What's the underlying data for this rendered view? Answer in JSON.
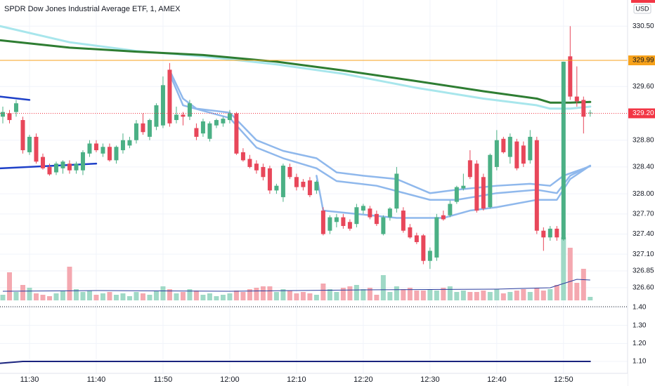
{
  "chart_data": {
    "type": "candlestick",
    "title": "SPDR Dow Jones Industrial Average ETF, 1, AMEX",
    "currency": "USD",
    "up_color": "#4bb085",
    "down_color": "#e8475a",
    "volume_up_color": "#9fd9c6",
    "volume_down_color": "#f4a8b0",
    "x": [
      686,
      687,
      688,
      689,
      690,
      691,
      692,
      693,
      694,
      695,
      696,
      697,
      698,
      699,
      700,
      701,
      702,
      703,
      704,
      705,
      706,
      707,
      708,
      709,
      710,
      711,
      712,
      713,
      714,
      715,
      716,
      717,
      718,
      719,
      720,
      721,
      722,
      723,
      724,
      725,
      726,
      727,
      728,
      729,
      730,
      731,
      732,
      733,
      734,
      735,
      736,
      737,
      738,
      739,
      740,
      741,
      742,
      743,
      744,
      745,
      746,
      747,
      748,
      749,
      750,
      751,
      752,
      753,
      754,
      755,
      756,
      757,
      758,
      759,
      760,
      761,
      762,
      763,
      764,
      765,
      766,
      767,
      768,
      769,
      770,
      771,
      772,
      773,
      774
    ],
    "open": [
      329.15,
      329.2,
      329.22,
      329.1,
      328.62,
      328.85,
      328.55,
      328.4,
      328.32,
      328.38,
      328.45,
      328.35,
      328.35,
      328.6,
      328.75,
      328.6,
      328.7,
      328.5,
      328.65,
      328.72,
      328.8,
      329.05,
      328.85,
      329.0,
      329.02,
      329.85,
      329.1,
      329.18,
      329.15,
      328.98,
      328.9,
      328.82,
      329.02,
      329.05,
      329.1,
      329.2,
      328.62,
      328.52,
      328.45,
      328.4,
      328.38,
      328.05,
      327.95,
      328.4,
      328.25,
      328.18,
      328.2,
      328.05,
      327.75,
      327.45,
      327.58,
      327.65,
      327.58,
      327.55,
      327.75,
      327.78,
      327.7,
      327.4,
      327.65,
      327.78,
      327.75,
      327.5,
      327.38,
      327.38,
      327.0,
      327.05,
      327.68,
      327.68,
      327.88,
      328.08,
      328.5,
      328.45,
      328.25,
      327.8,
      328.4,
      328.82,
      328.55,
      328.78,
      328.72,
      328.5,
      328.8,
      327.45,
      327.35,
      327.48,
      327.32,
      330.05,
      329.45,
      329.4,
      329.2
    ],
    "high": [
      329.3,
      329.25,
      329.4,
      329.15,
      328.88,
      328.9,
      328.6,
      328.45,
      328.48,
      328.5,
      328.5,
      328.48,
      328.65,
      328.8,
      328.8,
      328.75,
      328.75,
      328.72,
      328.9,
      328.85,
      329.1,
      329.2,
      329.12,
      329.35,
      329.75,
      329.95,
      329.3,
      329.22,
      329.4,
      329.05,
      329.12,
      329.08,
      329.12,
      329.15,
      329.25,
      329.22,
      328.68,
      328.58,
      328.5,
      328.45,
      328.42,
      328.15,
      328.45,
      328.45,
      328.3,
      328.22,
      328.25,
      328.2,
      327.8,
      327.68,
      327.7,
      327.7,
      327.62,
      327.85,
      327.85,
      327.82,
      327.75,
      327.68,
      327.8,
      328.4,
      327.8,
      327.55,
      327.42,
      327.4,
      327.2,
      327.7,
      327.75,
      327.9,
      328.12,
      328.3,
      328.65,
      328.5,
      328.3,
      328.6,
      328.95,
      328.85,
      328.9,
      328.82,
      328.78,
      328.95,
      328.85,
      327.5,
      327.52,
      327.52,
      329.97,
      330.5,
      329.9,
      329.45,
      329.25
    ],
    "low": [
      329.05,
      329.05,
      329.15,
      328.6,
      328.58,
      328.45,
      328.36,
      328.27,
      328.28,
      328.3,
      328.3,
      328.3,
      328.28,
      328.55,
      328.62,
      328.55,
      328.48,
      328.45,
      328.6,
      328.68,
      328.75,
      328.88,
      328.8,
      328.95,
      328.98,
      329.0,
      329.05,
      329.02,
      329.1,
      328.8,
      328.85,
      328.78,
      328.98,
      329.0,
      329.05,
      328.58,
      328.48,
      328.38,
      328.3,
      328.2,
      328.0,
      328.0,
      327.88,
      328.22,
      328.05,
      328.05,
      327.95,
      328.0,
      327.38,
      327.4,
      327.5,
      327.48,
      327.45,
      327.5,
      327.7,
      327.62,
      327.52,
      327.38,
      327.6,
      327.72,
      327.42,
      327.33,
      327.25,
      326.95,
      326.88,
      327.0,
      327.6,
      327.65,
      327.85,
      328.05,
      328.22,
      327.72,
      327.75,
      327.78,
      328.35,
      328.6,
      328.45,
      328.35,
      328.4,
      328.45,
      327.4,
      327.15,
      327.3,
      327.3,
      327.3,
      329.4,
      329.3,
      328.9,
      329.15
    ],
    "close": [
      329.22,
      329.1,
      329.35,
      328.65,
      328.85,
      328.48,
      328.38,
      328.29,
      328.45,
      328.48,
      328.35,
      328.45,
      328.62,
      328.75,
      328.65,
      328.7,
      328.5,
      328.7,
      328.8,
      328.8,
      329.05,
      328.92,
      329.1,
      329.32,
      329.62,
      329.05,
      329.18,
      329.15,
      329.35,
      328.85,
      329.08,
      329.05,
      329.1,
      329.12,
      329.2,
      328.6,
      328.5,
      328.4,
      328.35,
      328.25,
      328.05,
      328.12,
      328.42,
      328.25,
      328.1,
      328.1,
      327.98,
      328.18,
      327.4,
      327.65,
      327.65,
      327.52,
      327.48,
      327.8,
      327.82,
      327.65,
      327.55,
      327.65,
      327.78,
      328.3,
      327.45,
      327.35,
      327.28,
      327.0,
      327.15,
      327.65,
      327.62,
      327.85,
      328.1,
      328.12,
      328.25,
      327.75,
      327.78,
      328.58,
      328.8,
      328.62,
      328.85,
      328.38,
      328.45,
      328.85,
      327.45,
      327.35,
      327.48,
      327.35,
      329.97,
      329.45,
      329.38,
      329.15,
      329.21
    ],
    "volume": [
      8,
      40,
      12,
      22,
      18,
      10,
      8,
      6,
      10,
      14,
      48,
      16,
      12,
      14,
      8,
      10,
      12,
      8,
      10,
      6,
      12,
      10,
      8,
      14,
      20,
      16,
      10,
      12,
      16,
      14,
      8,
      10,
      6,
      8,
      10,
      14,
      12,
      16,
      18,
      20,
      20,
      12,
      16,
      14,
      10,
      12,
      10,
      8,
      24,
      16,
      12,
      18,
      20,
      22,
      16,
      18,
      8,
      36,
      12,
      20,
      16,
      18,
      14,
      14,
      16,
      14,
      18,
      20,
      12,
      14,
      12,
      12,
      14,
      12,
      16,
      10,
      12,
      14,
      16,
      12,
      18,
      14,
      16,
      22,
      90,
      75,
      25,
      45,
      5
    ],
    "volume_ma": {
      "color": "#2c3e9e",
      "x": [
        686,
        700,
        720,
        740,
        760,
        768,
        770,
        772,
        774
      ],
      "values": [
        13,
        14,
        13,
        15,
        16,
        18,
        24,
        30,
        29
      ]
    },
    "xlim": [
      685.58,
      779.6
    ],
    "xticks": [
      {
        "value": 690,
        "label": "11:30"
      },
      {
        "value": 700,
        "label": "11:40"
      },
      {
        "value": 710,
        "label": "11:50"
      },
      {
        "value": 720,
        "label": "12:00"
      },
      {
        "value": 730,
        "label": "12:10"
      },
      {
        "value": 740,
        "label": "12:20"
      },
      {
        "value": 750,
        "label": "12:30"
      },
      {
        "value": 760,
        "label": "12:40"
      },
      {
        "value": 770,
        "label": "12:50"
      }
    ],
    "ylim": [
      326.39,
      330.89
    ],
    "yticks": [
      {
        "value": 326.6,
        "label": "326.60"
      },
      {
        "value": 326.85,
        "label": "326.85"
      },
      {
        "value": 327.1,
        "label": "327.10"
      },
      {
        "value": 327.4,
        "label": "327.40"
      },
      {
        "value": 327.7,
        "label": "327.70"
      },
      {
        "value": 328,
        "label": "328.00"
      },
      {
        "value": 328.4,
        "label": "328.40"
      },
      {
        "value": 328.8,
        "label": "328.80"
      },
      {
        "value": 329.6,
        "label": "329.60"
      },
      {
        "value": 330.5,
        "label": "330.50"
      }
    ],
    "grid": true,
    "lines": [
      {
        "color": "#a8e6ec",
        "width": 3,
        "x": [
          685.6,
          696,
          706,
          716,
          727,
          737,
          748,
          758,
          766,
          768,
          771,
          774
        ],
        "values": [
          330.5,
          330.26,
          330.13,
          330.05,
          329.93,
          329.79,
          329.58,
          329.42,
          329.32,
          329.27,
          329.27,
          329.3
        ]
      },
      {
        "color": "#2e7d32",
        "width": 3,
        "x": [
          685.6,
          696,
          706,
          716,
          727,
          737,
          748,
          758,
          766,
          768,
          771,
          774
        ],
        "values": [
          330.29,
          330.18,
          330.12,
          330.07,
          329.97,
          329.84,
          329.68,
          329.53,
          329.42,
          329.36,
          329.36,
          329.37
        ]
      },
      {
        "color": "#1e40c8",
        "width": 2.5,
        "x": [
          685.6,
          690
        ],
        "values": [
          329.45,
          329.4
        ]
      },
      {
        "color": "#1e40c8",
        "width": 2.5,
        "x": [
          685.6,
          700
        ],
        "values": [
          328.38,
          328.45
        ]
      },
      {
        "color": "#8fb8ec",
        "width": 2.5,
        "x": [
          711,
          713,
          715,
          720,
          724,
          728,
          733,
          736,
          740,
          745,
          750,
          754,
          760,
          765,
          768,
          770,
          774
        ],
        "values": [
          329.84,
          329.42,
          329.27,
          329.21,
          328.8,
          328.64,
          328.53,
          328.32,
          328.27,
          328.22,
          328.01,
          328.06,
          328.12,
          328.15,
          328.12,
          328.27,
          328.41
        ]
      },
      {
        "color": "#8fb8ec",
        "width": 2.5,
        "x": [
          711,
          713,
          720,
          724,
          728,
          733,
          736,
          742,
          750,
          754,
          760,
          766,
          769,
          771,
          774
        ],
        "values": [
          329.79,
          329.32,
          329.13,
          328.69,
          328.53,
          328.38,
          328.19,
          328.12,
          327.91,
          327.91,
          328.01,
          328.06,
          328.01,
          328.27,
          328.42
        ]
      },
      {
        "color": "#8fb8ec",
        "width": 2.5,
        "x": [
          733,
          734,
          739,
          745,
          752,
          756,
          760,
          766,
          769,
          771,
          774
        ],
        "values": [
          328.27,
          327.75,
          327.7,
          327.64,
          327.64,
          327.75,
          327.8,
          327.91,
          327.91,
          328.22,
          328.42
        ]
      }
    ],
    "hlines": [
      {
        "value": 329.99,
        "label": "329.99",
        "color": "#f7a21b",
        "text_color": "#131722",
        "style": "solid"
      },
      {
        "value": 329.2,
        "label": "329.20",
        "color": "#f23645",
        "text_color": "#ffffff",
        "style": "dotted"
      }
    ],
    "indicator": {
      "ylim": [
        1.034,
        1.423
      ],
      "yticks": [
        {
          "value": 1.1,
          "label": "1.10"
        },
        {
          "value": 1.2,
          "label": "1.20"
        },
        {
          "value": 1.3,
          "label": "1.30"
        },
        {
          "value": 1.4,
          "label": "1.40"
        }
      ],
      "series": [
        {
          "color": "#1a237e",
          "width": 2,
          "x": [
            685.6,
            689,
            720,
            774
          ],
          "values": [
            1.09,
            1.1,
            1.1,
            1.1
          ]
        }
      ]
    }
  }
}
